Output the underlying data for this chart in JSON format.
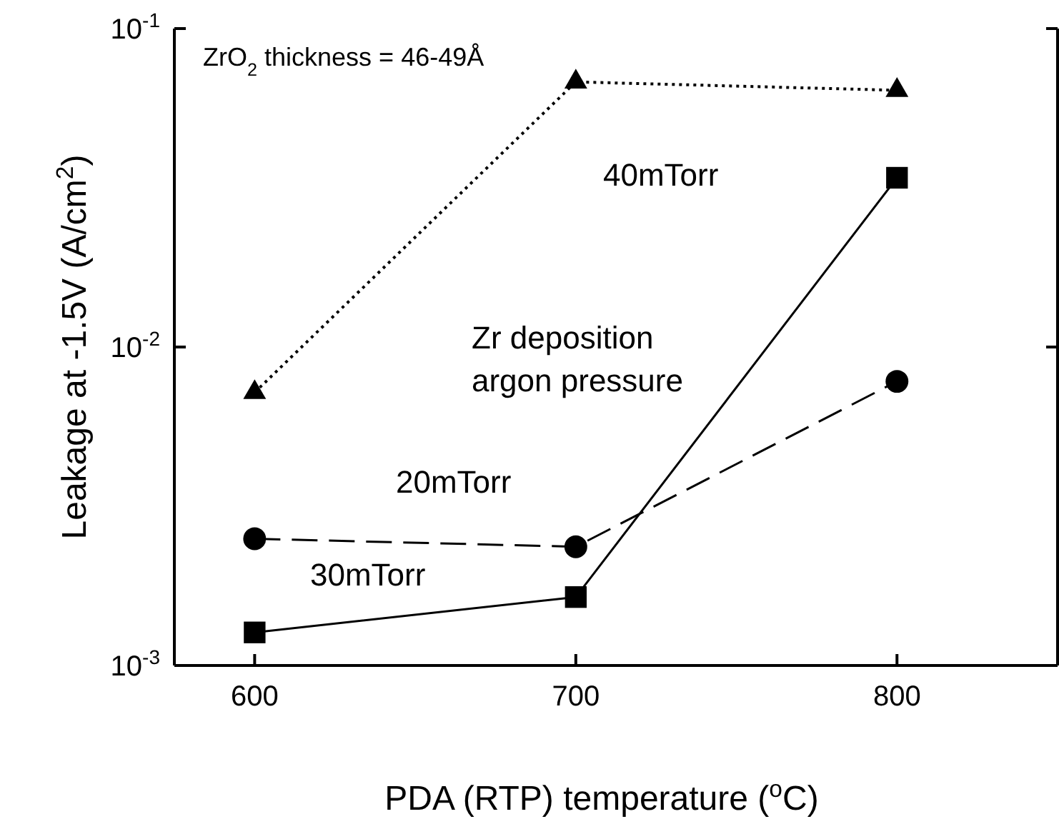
{
  "chart_data": {
    "type": "line",
    "xlabel": "PDA (RTP) temperature ($^{o}$C)",
    "ylabel": "Leakage at -1.5V (A/cm$^{2}$)",
    "x": [
      600,
      700,
      800
    ],
    "log": "y",
    "xlim": [
      575,
      850
    ],
    "xticks": [
      600,
      700,
      800
    ],
    "ylim": [
      0.001,
      0.1
    ],
    "yticks": [
      {
        "value": 0.001,
        "label": "10$^{-3}$"
      },
      {
        "value": 0.01,
        "label": "10$^{-2}$"
      },
      {
        "value": 0.1,
        "label": "10$^{-1}$"
      }
    ],
    "grid": false,
    "series": [
      {
        "name": "40mTorr",
        "color": "#000000",
        "marker": "triangle",
        "line_style": "dotted",
        "values": [
          0.0072,
          0.068,
          0.064
        ]
      },
      {
        "name": "20mTorr",
        "color": "#000000",
        "marker": "circle",
        "line_style": "dashed",
        "values": [
          0.0025,
          0.00236,
          0.0078
        ]
      },
      {
        "name": "30mTorr",
        "color": "#000000",
        "marker": "square",
        "line_style": "solid",
        "values": [
          0.00127,
          0.00164,
          0.034
        ]
      }
    ],
    "annotations": [
      "ZrO$_{2}$ thickness = 46-49Å",
      "Zr deposition\nargon pressure"
    ]
  }
}
